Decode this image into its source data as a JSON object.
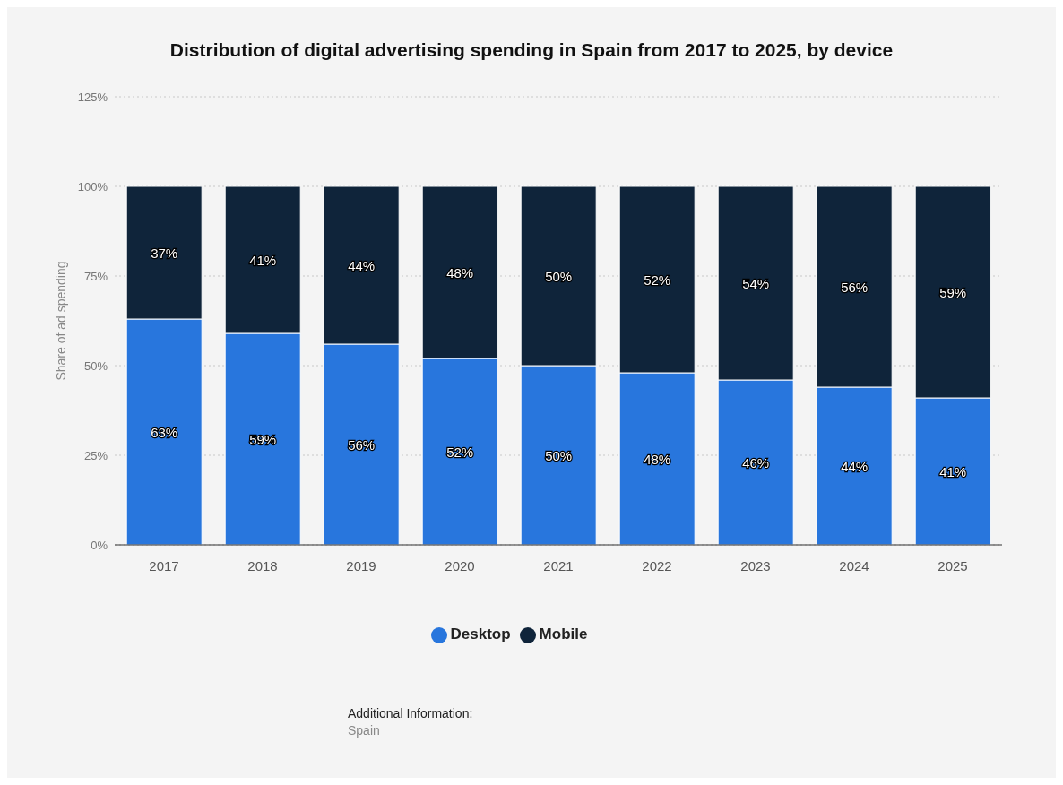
{
  "chart_data": {
    "type": "bar",
    "title": "Distribution of digital advertising spending in Spain from 2017 to 2025, by device",
    "ylabel": "Share of ad spending",
    "categories": [
      "2017",
      "2018",
      "2019",
      "2020",
      "2021",
      "2022",
      "2023",
      "2024",
      "2025"
    ],
    "stacked": true,
    "series": [
      {
        "name": "Desktop",
        "color": "#2876dd",
        "values": [
          63,
          59,
          56,
          52,
          50,
          48,
          46,
          44,
          41
        ],
        "value_labels": [
          "63%",
          "59%",
          "56%",
          "52%",
          "50%",
          "48%",
          "46%",
          "44%",
          "41%"
        ]
      },
      {
        "name": "Mobile",
        "color": "#0f243a",
        "values": [
          37,
          41,
          44,
          48,
          50,
          52,
          54,
          56,
          59
        ],
        "value_labels": [
          "37%",
          "41%",
          "44%",
          "48%",
          "50%",
          "52%",
          "54%",
          "56%",
          "59%"
        ]
      }
    ],
    "ylim": [
      0,
      125
    ],
    "yticks": [
      {
        "value": 0,
        "label": "0%"
      },
      {
        "value": 25,
        "label": "25%"
      },
      {
        "value": 50,
        "label": "50%"
      },
      {
        "value": 75,
        "label": "75%"
      },
      {
        "value": 100,
        "label": "100%"
      },
      {
        "value": 125,
        "label": "125%"
      }
    ],
    "grid": "y",
    "legend": "bottom",
    "annotations": [
      "Additional Information:",
      "Spain"
    ]
  }
}
